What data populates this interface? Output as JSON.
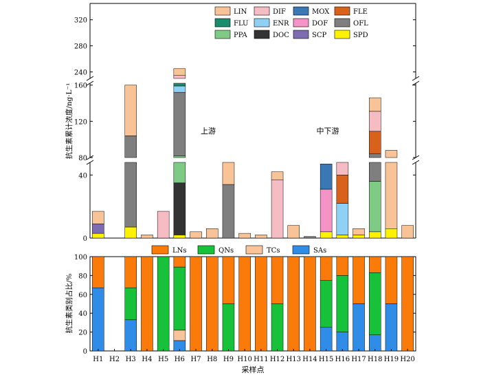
{
  "colors": {
    "LIN": "#f8c397",
    "FLU": "#1a8c6c",
    "PPA": "#7fcb86",
    "DIF": "#f5bcc3",
    "ENR": "#8fd1f5",
    "DOC": "#333333",
    "MOX": "#3a78b5",
    "DOF": "#f493c5",
    "SCP": "#7d6cb2",
    "FLE": "#d8611c",
    "OFL": "#7f7f7f",
    "SPD": "#fff200",
    "LNs": "#fa7a0a",
    "QNs": "#17c23a",
    "TCs": "#fbc398",
    "SAs": "#2f8de8"
  },
  "chart_data": [
    {
      "type": "bar",
      "stacked": true,
      "broken_y_axis": true,
      "ylabel": "抗生素累计浓度/ng·L⁻¹",
      "y_segments": [
        [
          0,
          48
        ],
        [
          80,
          162
        ],
        [
          230,
          345
        ]
      ],
      "yticks": [
        0,
        40,
        80,
        120,
        160,
        240,
        280,
        320
      ],
      "annotations": [
        "上游",
        "中下游"
      ],
      "legend": {
        "position": "top-right",
        "entries": [
          "LIN",
          "DIF",
          "MOX",
          "FLE",
          "FLU",
          "ENR",
          "DOF",
          "OFL",
          "PPA",
          "DOC",
          "SCP",
          "SPD"
        ]
      },
      "categories": [
        "H1",
        "H2",
        "H3",
        "H4",
        "H5",
        "H6",
        "H7",
        "H8",
        "H9",
        "H10",
        "H11",
        "H12",
        "H13",
        "H14",
        "H15",
        "H16",
        "H17",
        "H18",
        "H19",
        "H20"
      ],
      "series": [
        {
          "name": "SPD",
          "values": [
            3,
            0,
            7,
            0,
            0,
            2,
            0,
            0,
            0,
            0,
            0,
            0,
            0,
            0,
            4,
            2,
            2,
            4,
            6,
            0
          ]
        },
        {
          "name": "SCP",
          "values": [
            6,
            0,
            0,
            0,
            0,
            0,
            0,
            0,
            0,
            0,
            0,
            0,
            0,
            0,
            0,
            0,
            0,
            0,
            0,
            0
          ]
        },
        {
          "name": "DOC",
          "values": [
            0,
            0,
            0,
            0,
            0,
            33,
            0,
            0,
            0,
            0,
            0,
            0,
            0,
            0,
            0,
            0,
            0,
            0,
            0,
            0
          ]
        },
        {
          "name": "PPA",
          "values": [
            0,
            0,
            0,
            0,
            0,
            47,
            0,
            0,
            0,
            0,
            0,
            0,
            0,
            0,
            0,
            0,
            0,
            32,
            0,
            0
          ]
        },
        {
          "name": "OFL",
          "values": [
            0,
            0,
            97,
            0,
            0,
            70,
            0,
            0,
            34,
            0,
            0,
            0,
            0,
            1,
            0,
            0,
            0,
            48,
            0,
            0
          ]
        },
        {
          "name": "ENR",
          "values": [
            0,
            0,
            0,
            0,
            0,
            7,
            0,
            0,
            0,
            0,
            0,
            0,
            0,
            0,
            0,
            20,
            0,
            0,
            0,
            0
          ]
        },
        {
          "name": "FLU",
          "values": [
            0,
            0,
            0,
            0,
            0,
            6,
            0,
            0,
            0,
            0,
            0,
            0,
            0,
            0,
            0,
            0,
            0,
            0,
            0,
            0
          ]
        },
        {
          "name": "FLE",
          "values": [
            0,
            0,
            0,
            0,
            0,
            40,
            0,
            0,
            0,
            0,
            0,
            0,
            0,
            0,
            0,
            18,
            0,
            25,
            0,
            0
          ]
        },
        {
          "name": "DOF",
          "values": [
            0,
            0,
            0,
            0,
            0,
            0,
            0,
            0,
            0,
            0,
            0,
            0,
            0,
            0,
            27,
            0,
            0,
            0,
            0,
            0
          ]
        },
        {
          "name": "MOX",
          "values": [
            0,
            0,
            0,
            0,
            0,
            0,
            0,
            0,
            0,
            0,
            0,
            0,
            0,
            0,
            16,
            0,
            0,
            0,
            0,
            0
          ]
        },
        {
          "name": "DIF",
          "values": [
            0,
            0,
            0,
            0,
            17,
            30,
            0,
            0,
            0,
            0,
            0,
            37,
            0,
            0,
            0,
            12,
            0,
            22,
            0,
            0
          ]
        },
        {
          "name": "LIN",
          "values": [
            8,
            0,
            56,
            2,
            0,
            10,
            4,
            6,
            15,
            3,
            2,
            5,
            8,
            0,
            0,
            0,
            4,
            15,
            82,
            8
          ]
        }
      ]
    },
    {
      "type": "bar",
      "stacked": true,
      "ylabel": "抗生素类别占比/%",
      "xlabel": "采样点",
      "ylim": [
        0,
        100
      ],
      "yticks": [
        0,
        20,
        40,
        60,
        80,
        100
      ],
      "legend": {
        "position": "top",
        "entries": [
          "LNs",
          "QNs",
          "TCs",
          "SAs"
        ]
      },
      "categories": [
        "H1",
        "H2",
        "H3",
        "H4",
        "H5",
        "H6",
        "H7",
        "H8",
        "H9",
        "H10",
        "H11",
        "H12",
        "H13",
        "H14",
        "H15",
        "H16",
        "H17",
        "H18",
        "H19",
        "H20"
      ],
      "series": [
        {
          "name": "SAs",
          "values": [
            67,
            0,
            33,
            0,
            0,
            11,
            0,
            0,
            0,
            0,
            0,
            0,
            0,
            0,
            25,
            20,
            50,
            17,
            50,
            0
          ]
        },
        {
          "name": "TCs",
          "values": [
            0,
            0,
            0,
            0,
            0,
            11,
            0,
            0,
            0,
            0,
            0,
            0,
            0,
            0,
            0,
            0,
            0,
            0,
            0,
            0
          ]
        },
        {
          "name": "QNs",
          "values": [
            0,
            0,
            34,
            0,
            100,
            67,
            0,
            0,
            50,
            0,
            0,
            50,
            0,
            0,
            50,
            60,
            0,
            66,
            0,
            0
          ]
        },
        {
          "name": "LNs",
          "values": [
            33,
            0,
            33,
            100,
            0,
            11,
            100,
            100,
            50,
            100,
            100,
            50,
            100,
            100,
            25,
            20,
            50,
            17,
            50,
            100
          ]
        }
      ]
    }
  ]
}
